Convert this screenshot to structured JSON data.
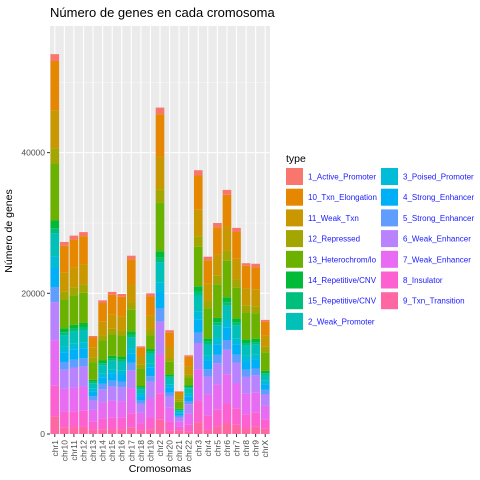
{
  "chart_data": {
    "type": "bar",
    "stacked": true,
    "title": "Número de genes en cada cromosoma",
    "xlabel": "Cromosomas",
    "ylabel": "Número de genes",
    "ylim": [
      0,
      58000
    ],
    "yticks": [
      0,
      20000,
      40000
    ],
    "ytick_labels": [
      "0",
      "20000",
      "40000"
    ],
    "grid": true,
    "legend_title": "type",
    "legend_position": "right",
    "categories": [
      "chr1",
      "chr10",
      "chr11",
      "chr12",
      "chr13",
      "chr14",
      "chr15",
      "chr16",
      "chr17",
      "chr18",
      "chr19",
      "chr2",
      "chr20",
      "chr21",
      "chr22",
      "chr3",
      "chr4",
      "chr5",
      "chr6",
      "chr7",
      "chr8",
      "chr9",
      "chrX"
    ],
    "totals": [
      54000,
      27300,
      28200,
      28700,
      14000,
      19000,
      20200,
      19900,
      25600,
      12400,
      19800,
      46400,
      14900,
      6100,
      11300,
      37500,
      25200,
      30000,
      34700,
      29300,
      24400,
      24200,
      16300
    ],
    "series": [
      {
        "name": "1_Active_Promoter",
        "color": "#F8766D",
        "fractions": [
          0.018,
          0.02,
          0.02,
          0.02,
          0.015,
          0.02,
          0.02,
          0.02,
          0.02,
          0.015,
          0.02,
          0.02,
          0.02,
          0.015,
          0.02,
          0.02,
          0.02,
          0.02,
          0.02,
          0.02,
          0.015,
          0.02,
          0.015
        ]
      },
      {
        "name": "10_Txn_Elongation",
        "color": "#E58700",
        "fractions": [
          0.13,
          0.14,
          0.14,
          0.14,
          0.1,
          0.14,
          0.14,
          0.14,
          0.14,
          0.09,
          0.14,
          0.13,
          0.14,
          0.07,
          0.12,
          0.13,
          0.13,
          0.13,
          0.13,
          0.13,
          0.13,
          0.13,
          0.12
        ]
      },
      {
        "name": "11_Weak_Txn",
        "color": "#C99800",
        "fractions": [
          0.1,
          0.1,
          0.1,
          0.1,
          0.1,
          0.1,
          0.1,
          0.1,
          0.1,
          0.1,
          0.1,
          0.1,
          0.1,
          0.1,
          0.1,
          0.1,
          0.1,
          0.1,
          0.1,
          0.1,
          0.1,
          0.1,
          0.1
        ]
      },
      {
        "name": "12_Repressed",
        "color": "#A3A500",
        "fractions": [
          0.04,
          0.04,
          0.04,
          0.04,
          0.05,
          0.04,
          0.04,
          0.04,
          0.04,
          0.05,
          0.04,
          0.04,
          0.04,
          0.06,
          0.04,
          0.04,
          0.04,
          0.04,
          0.04,
          0.04,
          0.04,
          0.04,
          0.05
        ]
      },
      {
        "name": "13_Heterochrom/lo",
        "color": "#6BB100",
        "fractions": [
          0.15,
          0.15,
          0.15,
          0.15,
          0.18,
          0.15,
          0.15,
          0.15,
          0.12,
          0.2,
          0.1,
          0.15,
          0.12,
          0.16,
          0.1,
          0.15,
          0.17,
          0.16,
          0.15,
          0.15,
          0.16,
          0.15,
          0.16
        ]
      },
      {
        "name": "14_Repetitive/CNV",
        "color": "#00BA38",
        "fractions": [
          0.02,
          0.02,
          0.02,
          0.02,
          0.02,
          0.02,
          0.02,
          0.02,
          0.02,
          0.02,
          0.02,
          0.02,
          0.02,
          0.02,
          0.02,
          0.02,
          0.02,
          0.02,
          0.02,
          0.02,
          0.02,
          0.02,
          0.02
        ]
      },
      {
        "name": "15_Repetitive/CNV",
        "color": "#00BF7D",
        "fractions": [
          0.015,
          0.015,
          0.015,
          0.015,
          0.015,
          0.015,
          0.015,
          0.015,
          0.015,
          0.015,
          0.015,
          0.015,
          0.015,
          0.015,
          0.015,
          0.015,
          0.015,
          0.015,
          0.015,
          0.015,
          0.015,
          0.015,
          0.015
        ]
      },
      {
        "name": "2_Weak_Promoter",
        "color": "#00C0B8",
        "fractions": [
          0.06,
          0.06,
          0.06,
          0.06,
          0.05,
          0.06,
          0.06,
          0.06,
          0.06,
          0.05,
          0.07,
          0.06,
          0.06,
          0.05,
          0.07,
          0.06,
          0.06,
          0.06,
          0.06,
          0.06,
          0.06,
          0.06,
          0.05
        ]
      },
      {
        "name": "3_Poised_Promoter",
        "color": "#00BCD8",
        "fractions": [
          0.03,
          0.03,
          0.03,
          0.03,
          0.03,
          0.03,
          0.03,
          0.03,
          0.03,
          0.03,
          0.03,
          0.03,
          0.03,
          0.03,
          0.03,
          0.03,
          0.03,
          0.03,
          0.03,
          0.03,
          0.03,
          0.03,
          0.03
        ]
      },
      {
        "name": "4_Strong_Enhancer",
        "color": "#00B0F6",
        "fractions": [
          0.05,
          0.05,
          0.05,
          0.05,
          0.05,
          0.05,
          0.05,
          0.05,
          0.05,
          0.05,
          0.06,
          0.05,
          0.05,
          0.05,
          0.06,
          0.05,
          0.05,
          0.05,
          0.05,
          0.05,
          0.05,
          0.05,
          0.05
        ]
      },
      {
        "name": "5_Strong_Enhancer",
        "color": "#619CFF",
        "fractions": [
          0.04,
          0.04,
          0.04,
          0.04,
          0.04,
          0.04,
          0.04,
          0.04,
          0.04,
          0.04,
          0.04,
          0.04,
          0.04,
          0.04,
          0.04,
          0.04,
          0.04,
          0.04,
          0.04,
          0.04,
          0.04,
          0.04,
          0.04
        ]
      },
      {
        "name": "6_Weak_Enhancer",
        "color": "#B983FF",
        "fractions": [
          0.1,
          0.1,
          0.1,
          0.1,
          0.1,
          0.1,
          0.1,
          0.1,
          0.1,
          0.1,
          0.12,
          0.1,
          0.1,
          0.1,
          0.12,
          0.1,
          0.1,
          0.1,
          0.1,
          0.1,
          0.1,
          0.1,
          0.1
        ]
      },
      {
        "name": "7_Weak_Enhancer",
        "color": "#E76BF3",
        "fractions": [
          0.12,
          0.12,
          0.12,
          0.12,
          0.12,
          0.12,
          0.12,
          0.12,
          0.14,
          0.12,
          0.14,
          0.12,
          0.14,
          0.12,
          0.14,
          0.12,
          0.12,
          0.12,
          0.12,
          0.12,
          0.12,
          0.12,
          0.12
        ]
      },
      {
        "name": "8_Insulator",
        "color": "#FD61D1",
        "fractions": [
          0.08,
          0.08,
          0.08,
          0.08,
          0.08,
          0.08,
          0.08,
          0.08,
          0.08,
          0.08,
          0.08,
          0.08,
          0.08,
          0.08,
          0.08,
          0.08,
          0.08,
          0.08,
          0.08,
          0.08,
          0.08,
          0.08,
          0.08
        ]
      },
      {
        "name": "9_Txn_Transition",
        "color": "#FF67A4",
        "fractions": [
          0.047,
          0.035,
          0.035,
          0.035,
          0.045,
          0.035,
          0.035,
          0.035,
          0.035,
          0.045,
          0.035,
          0.045,
          0.035,
          0.085,
          0.035,
          0.045,
          0.025,
          0.035,
          0.045,
          0.045,
          0.035,
          0.045,
          0.045
        ]
      }
    ]
  }
}
